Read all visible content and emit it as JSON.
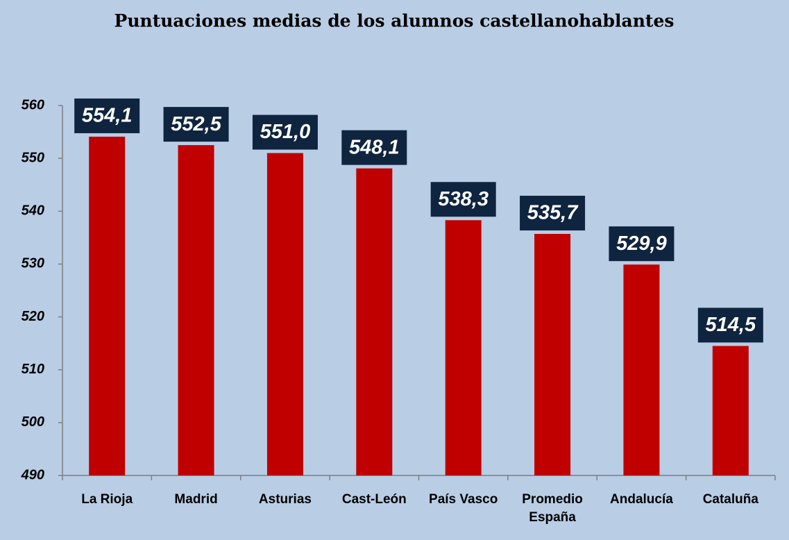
{
  "chart_data": {
    "type": "bar",
    "title": "Puntuaciones medias de los alumnos castellanohablantes",
    "categories": [
      "La Rioja",
      "Madrid",
      "Asturias",
      "Cast-León",
      "País Vasco",
      "Promedio España",
      "Andalucía",
      "Cataluña"
    ],
    "values": [
      554.1,
      552.5,
      551.0,
      548.1,
      538.3,
      535.7,
      529.9,
      514.5
    ],
    "value_labels": [
      "554,1",
      "552,5",
      "551,0",
      "548,1",
      "538,3",
      "535,7",
      "529,9",
      "514,5"
    ],
    "color": "#c00000",
    "ylim": [
      490,
      560
    ],
    "yticks": [
      490,
      500,
      510,
      520,
      530,
      540,
      550,
      560
    ],
    "grid": false
  }
}
